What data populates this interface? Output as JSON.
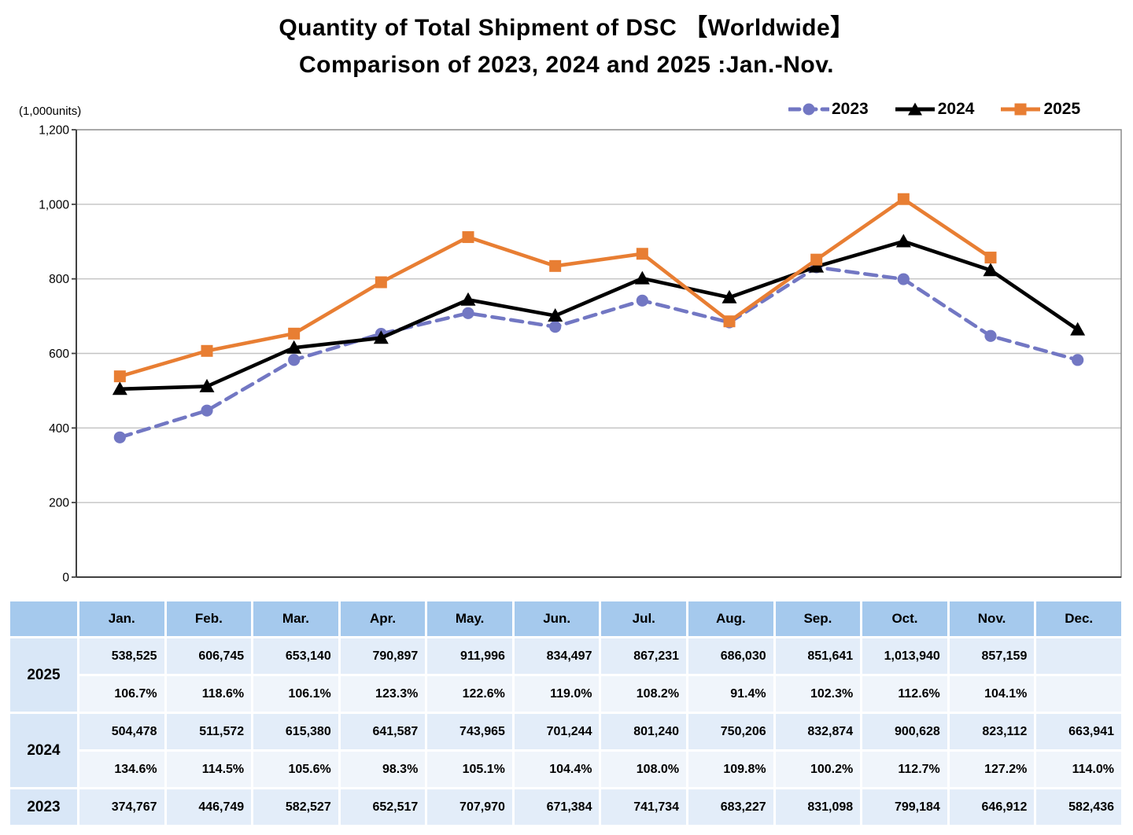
{
  "title": {
    "line1": "Quantity of Total Shipment of DSC 【Worldwide】",
    "line2": "Comparison of 2023, 2024 and 2025 :Jan.-Nov."
  },
  "units_label": "(1,000units)",
  "legend": [
    {
      "label": "2023",
      "color": "#7277c3",
      "marker": "circle",
      "dashed": true
    },
    {
      "label": "2024",
      "color": "#000000",
      "marker": "triangle",
      "dashed": false
    },
    {
      "label": "2025",
      "color": "#e87e33",
      "marker": "square",
      "dashed": false
    }
  ],
  "colors": {
    "grid": "#c3c3c3",
    "plot_border": "#8c8c8c",
    "axis": "#404040",
    "header_bg": "#a5c9ed",
    "year_bg": "#d9e7f7",
    "value_row_bg": "#e3edf9",
    "pct_row_bg": "#f0f5fb"
  },
  "chart_data": {
    "type": "line",
    "categories": [
      "Jan.",
      "Feb.",
      "Mar.",
      "Apr.",
      "May.",
      "Jun.",
      "Jul.",
      "Aug.",
      "Sep.",
      "Oct.",
      "Nov.",
      "Dec."
    ],
    "ylabel": "(1,000units)",
    "ylim": [
      0,
      1200
    ],
    "ytick_step": 200,
    "grid": true,
    "legend_position": "top-right",
    "series": [
      {
        "name": "2023",
        "color": "#7277c3",
        "marker": "circle",
        "dashed": true,
        "values": [
          374.767,
          446.749,
          582.527,
          652.517,
          707.97,
          671.384,
          741.734,
          683.227,
          831.098,
          799.184,
          646.912,
          582.436
        ]
      },
      {
        "name": "2024",
        "color": "#000000",
        "marker": "triangle",
        "dashed": false,
        "values": [
          504.478,
          511.572,
          615.38,
          641.587,
          743.965,
          701.244,
          801.24,
          750.206,
          832.874,
          900.628,
          823.112,
          663.941
        ]
      },
      {
        "name": "2025",
        "color": "#e87e33",
        "marker": "square",
        "dashed": false,
        "values": [
          538.525,
          606.745,
          653.14,
          790.897,
          911.996,
          834.497,
          867.231,
          686.03,
          851.641,
          1013.94,
          857.159,
          null
        ]
      }
    ]
  },
  "table": {
    "columns": [
      "Jan.",
      "Feb.",
      "Mar.",
      "Apr.",
      "May.",
      "Jun.",
      "Jul.",
      "Aug.",
      "Sep.",
      "Oct.",
      "Nov.",
      "Dec."
    ],
    "rows": [
      {
        "year": "2025",
        "values": [
          "538,525",
          "606,745",
          "653,140",
          "790,897",
          "911,996",
          "834,497",
          "867,231",
          "686,030",
          "851,641",
          "1,013,940",
          "857,159",
          ""
        ],
        "pct": [
          "106.7%",
          "118.6%",
          "106.1%",
          "123.3%",
          "122.6%",
          "119.0%",
          "108.2%",
          "91.4%",
          "102.3%",
          "112.6%",
          "104.1%",
          ""
        ]
      },
      {
        "year": "2024",
        "values": [
          "504,478",
          "511,572",
          "615,380",
          "641,587",
          "743,965",
          "701,244",
          "801,240",
          "750,206",
          "832,874",
          "900,628",
          "823,112",
          "663,941"
        ],
        "pct": [
          "134.6%",
          "114.5%",
          "105.6%",
          "98.3%",
          "105.1%",
          "104.4%",
          "108.0%",
          "109.8%",
          "100.2%",
          "112.7%",
          "127.2%",
          "114.0%"
        ]
      },
      {
        "year": "2023",
        "values": [
          "374,767",
          "446,749",
          "582,527",
          "652,517",
          "707,970",
          "671,384",
          "741,734",
          "683,227",
          "831,098",
          "799,184",
          "646,912",
          "582,436"
        ],
        "pct": null
      }
    ]
  }
}
